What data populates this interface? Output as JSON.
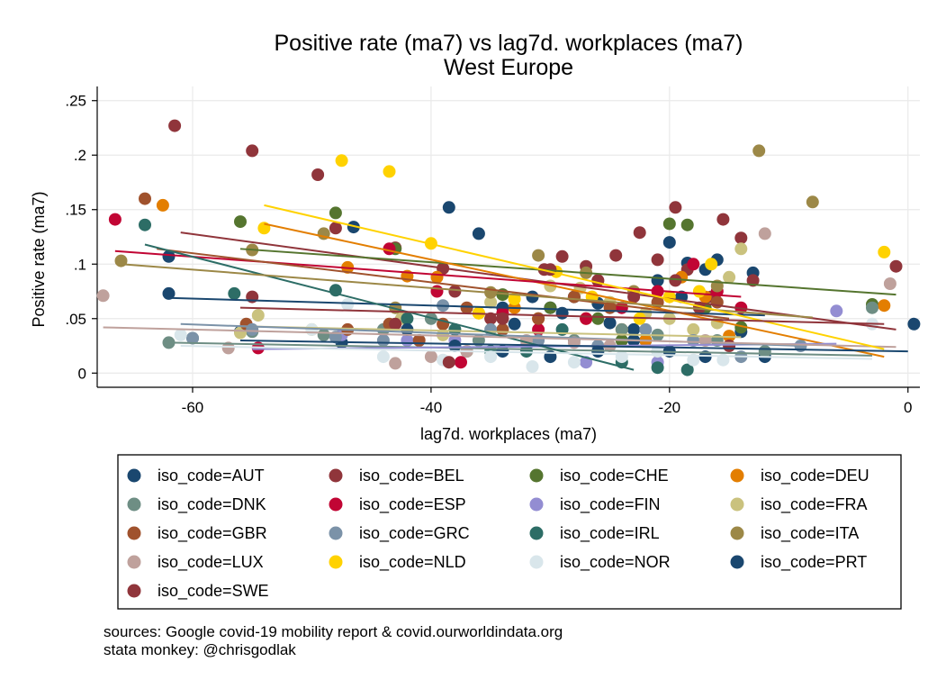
{
  "chart_data": {
    "type": "scatter",
    "title": "Positive rate (ma7) vs lag7d. workplaces (ma7)",
    "subtitle": "West Europe",
    "xlabel": "lag7d. workplaces (ma7)",
    "ylabel": "Positive rate (ma7)",
    "xlim": [
      -68,
      1
    ],
    "ylim": [
      -0.013,
      0.263
    ],
    "xticks": [
      -60,
      -40,
      -20,
      0
    ],
    "xtick_labels": [
      "-60",
      "-40",
      "-20",
      "0"
    ],
    "yticks": [
      0,
      0.05,
      0.1,
      0.15,
      0.2,
      0.25
    ],
    "ytick_labels": [
      "0",
      ".05",
      ".1",
      ".15",
      ".2",
      ".25"
    ],
    "grid": true,
    "legend_position": "bottom",
    "legend_prefix": "iso_code=",
    "series": [
      {
        "name": "AUT",
        "color": "#1a476f",
        "points": [
          [
            -62,
            0.107
          ],
          [
            -62,
            0.073
          ],
          [
            -56,
            0.038
          ],
          [
            -47.5,
            0.028
          ],
          [
            -38.5,
            0.152
          ],
          [
            -36,
            0.128
          ],
          [
            -34,
            0.06
          ],
          [
            -33,
            0.045
          ],
          [
            -31.5,
            0.07
          ],
          [
            -30,
            0.06
          ],
          [
            -29,
            0.055
          ],
          [
            -28,
            0.07
          ],
          [
            -26,
            0.064
          ],
          [
            -25,
            0.046
          ],
          [
            -23,
            0.04
          ],
          [
            -22,
            0.03
          ],
          [
            -21,
            0.085
          ],
          [
            -20,
            0.12
          ],
          [
            -19,
            0.07
          ],
          [
            -18.5,
            0.101
          ],
          [
            -17,
            0.095
          ],
          [
            -16,
            0.104
          ],
          [
            -14,
            0.038
          ],
          [
            -13,
            0.092
          ],
          [
            -12,
            0.015
          ]
        ],
        "fit": [
          [
            -62,
            0.069
          ],
          [
            -12,
            0.053
          ]
        ]
      },
      {
        "name": "BEL",
        "color": "#90353b",
        "points": [
          [
            -61.5,
            0.227
          ],
          [
            -55,
            0.204
          ],
          [
            -49.5,
            0.182
          ],
          [
            -48,
            0.133
          ],
          [
            -43,
            0.115
          ],
          [
            -39,
            0.096
          ],
          [
            -38,
            0.075
          ],
          [
            -35,
            0.05
          ],
          [
            -30.5,
            0.095
          ],
          [
            -29,
            0.107
          ],
          [
            -27,
            0.098
          ],
          [
            -26,
            0.085
          ],
          [
            -24.5,
            0.108
          ],
          [
            -22.5,
            0.129
          ],
          [
            -21,
            0.104
          ],
          [
            -19.5,
            0.152
          ],
          [
            -18.5,
            0.095
          ],
          [
            -16.5,
            0.07
          ],
          [
            -15.5,
            0.141
          ],
          [
            -14,
            0.124
          ],
          [
            -13,
            0.085
          ]
        ],
        "fit": [
          [
            -61,
            0.129
          ],
          [
            -1,
            0.04
          ]
        ]
      },
      {
        "name": "CHE",
        "color": "#55752f",
        "points": [
          [
            -56,
            0.139
          ],
          [
            -48,
            0.147
          ],
          [
            -43,
            0.114
          ],
          [
            -37,
            0.02
          ],
          [
            -34,
            0.072
          ],
          [
            -30,
            0.06
          ],
          [
            -26,
            0.05
          ],
          [
            -24,
            0.03
          ],
          [
            -20,
            0.137
          ],
          [
            -18.5,
            0.136
          ],
          [
            -17,
            0.06
          ],
          [
            -14,
            0.042
          ],
          [
            -3,
            0.063
          ]
        ],
        "fit": [
          [
            -56,
            0.114
          ],
          [
            -1,
            0.072
          ]
        ]
      },
      {
        "name": "DEU",
        "color": "#e37e00",
        "points": [
          [
            -62.5,
            0.154
          ],
          [
            -47,
            0.097
          ],
          [
            -42,
            0.089
          ],
          [
            -39.5,
            0.088
          ],
          [
            -36,
            0.055
          ],
          [
            -33,
            0.06
          ],
          [
            -31,
            0.05
          ],
          [
            -27,
            0.05
          ],
          [
            -24,
            0.04
          ],
          [
            -22,
            0.03
          ],
          [
            -19,
            0.088
          ],
          [
            -17,
            0.07
          ],
          [
            -15,
            0.034
          ],
          [
            -2,
            0.062
          ]
        ],
        "fit": [
          [
            -54,
            0.137
          ],
          [
            -2,
            0.015
          ]
        ]
      },
      {
        "name": "DNK",
        "color": "#6e8e84",
        "points": [
          [
            -62,
            0.028
          ],
          [
            -60,
            0.032
          ],
          [
            -55,
            0.038
          ],
          [
            -49,
            0.035
          ],
          [
            -44,
            0.04
          ],
          [
            -40,
            0.05
          ],
          [
            -36,
            0.03
          ],
          [
            -32,
            0.025
          ],
          [
            -28,
            0.03
          ],
          [
            -24,
            0.04
          ],
          [
            -21,
            0.035
          ],
          [
            -16,
            0.03
          ],
          [
            -12,
            0.02
          ],
          [
            -3,
            0.06
          ]
        ],
        "fit": [
          [
            -62,
            0.028
          ],
          [
            -3,
            0.016
          ]
        ]
      },
      {
        "name": "ESP",
        "color": "#c10534",
        "points": [
          [
            -66.5,
            0.141
          ],
          [
            -54.5,
            0.023
          ],
          [
            -43.5,
            0.114
          ],
          [
            -39.5,
            0.075
          ],
          [
            -37.5,
            0.01
          ],
          [
            -34,
            0.055
          ],
          [
            -31,
            0.04
          ],
          [
            -27,
            0.05
          ],
          [
            -24,
            0.06
          ],
          [
            -21,
            0.075
          ],
          [
            -18,
            0.1
          ],
          [
            -16,
            0.075
          ],
          [
            -14,
            0.06
          ]
        ],
        "fit": [
          [
            -66.5,
            0.112
          ],
          [
            -14,
            0.07
          ]
        ]
      },
      {
        "name": "FIN",
        "color": "#938dd2",
        "points": [
          [
            -47.5,
            0.035
          ],
          [
            -42,
            0.03
          ],
          [
            -38,
            0.03
          ],
          [
            -32,
            0.025
          ],
          [
            -27,
            0.01
          ],
          [
            -21,
            0.01
          ],
          [
            -6,
            0.057
          ]
        ],
        "fit": [
          [
            -55,
            0.022
          ],
          [
            -6,
            0.027
          ]
        ]
      },
      {
        "name": "FRA",
        "color": "#cac27e",
        "points": [
          [
            -56,
            0.037
          ],
          [
            -54.5,
            0.053
          ],
          [
            -50,
            0.04
          ],
          [
            -42.5,
            0.05
          ],
          [
            -39,
            0.035
          ],
          [
            -35,
            0.065
          ],
          [
            -30,
            0.08
          ],
          [
            -27.5,
            0.078
          ],
          [
            -25,
            0.065
          ],
          [
            -22,
            0.055
          ],
          [
            -20,
            0.05
          ],
          [
            -18,
            0.04
          ],
          [
            -16,
            0.046
          ],
          [
            -15,
            0.088
          ],
          [
            -14,
            0.114
          ]
        ],
        "fit": [
          [
            -56,
            0.043
          ],
          [
            -14,
            0.033
          ]
        ]
      },
      {
        "name": "GBR",
        "color": "#a0522d",
        "points": [
          [
            -64,
            0.16
          ],
          [
            -55.5,
            0.045
          ],
          [
            -47,
            0.04
          ],
          [
            -43.5,
            0.045
          ],
          [
            -41,
            0.03
          ],
          [
            -39,
            0.045
          ],
          [
            -37,
            0.06
          ],
          [
            -34,
            0.04
          ],
          [
            -31,
            0.05
          ],
          [
            -28,
            0.07
          ],
          [
            -25,
            0.06
          ],
          [
            -21,
            0.065
          ],
          [
            -16,
            0.065
          ]
        ],
        "fit": [
          [
            -63,
            0.114
          ],
          [
            -15,
            0.05
          ]
        ]
      },
      {
        "name": "GRC",
        "color": "#7b92a8",
        "points": [
          [
            -60,
            0.032
          ],
          [
            -55,
            0.04
          ],
          [
            -48,
            0.033
          ],
          [
            -44,
            0.03
          ],
          [
            -39,
            0.062
          ],
          [
            -35,
            0.04
          ],
          [
            -31,
            0.03
          ],
          [
            -26,
            0.025
          ],
          [
            -22,
            0.04
          ],
          [
            -18,
            0.03
          ],
          [
            -14,
            0.015
          ],
          [
            -9,
            0.025
          ]
        ],
        "fit": [
          [
            -61,
            0.045
          ],
          [
            -9,
            0.025
          ]
        ]
      },
      {
        "name": "IRL",
        "color": "#2d6d66",
        "points": [
          [
            -64,
            0.136
          ],
          [
            -56.5,
            0.073
          ],
          [
            -48,
            0.076
          ],
          [
            -42,
            0.05
          ],
          [
            -38,
            0.04
          ],
          [
            -35,
            0.02
          ],
          [
            -32,
            0.02
          ],
          [
            -29,
            0.04
          ],
          [
            -26,
            0.02
          ],
          [
            -24,
            0.01
          ],
          [
            -21,
            0.005
          ],
          [
            -18.5,
            0.003
          ]
        ],
        "fit": [
          [
            -64,
            0.118
          ],
          [
            -23,
            0.003
          ]
        ]
      },
      {
        "name": "ITA",
        "color": "#9c8847",
        "points": [
          [
            -66,
            0.103
          ],
          [
            -55,
            0.113
          ],
          [
            -49,
            0.128
          ],
          [
            -43,
            0.06
          ],
          [
            -35,
            0.074
          ],
          [
            -31,
            0.108
          ],
          [
            -27,
            0.092
          ],
          [
            -23,
            0.075
          ],
          [
            -16,
            0.08
          ],
          [
            -12.5,
            0.204
          ],
          [
            -8,
            0.157
          ]
        ],
        "fit": [
          [
            -66,
            0.1
          ],
          [
            -8,
            0.051
          ]
        ]
      },
      {
        "name": "LUX",
        "color": "#bfa19c",
        "points": [
          [
            -67.5,
            0.071
          ],
          [
            -57,
            0.023
          ],
          [
            -43,
            0.009
          ],
          [
            -40,
            0.015
          ],
          [
            -37,
            0.02
          ],
          [
            -32,
            0.03
          ],
          [
            -28,
            0.028
          ],
          [
            -25,
            0.025
          ],
          [
            -21,
            0.02
          ],
          [
            -17,
            0.03
          ],
          [
            -12,
            0.128
          ],
          [
            -1.5,
            0.082
          ]
        ],
        "fit": [
          [
            -67.5,
            0.042
          ],
          [
            -1,
            0.024
          ]
        ]
      },
      {
        "name": "NLD",
        "color": "#ffd200",
        "points": [
          [
            -54,
            0.133
          ],
          [
            -47.5,
            0.195
          ],
          [
            -43.5,
            0.185
          ],
          [
            -40,
            0.119
          ],
          [
            -36,
            0.055
          ],
          [
            -33,
            0.068
          ],
          [
            -29.5,
            0.093
          ],
          [
            -26.5,
            0.07
          ],
          [
            -22.5,
            0.05
          ],
          [
            -20,
            0.07
          ],
          [
            -17.5,
            0.075
          ],
          [
            -16.5,
            0.1
          ],
          [
            -2,
            0.111
          ]
        ],
        "fit": [
          [
            -54,
            0.154
          ],
          [
            -2,
            0.022
          ]
        ]
      },
      {
        "name": "NOR",
        "color": "#d9e6eb",
        "points": [
          [
            -61,
            0.035
          ],
          [
            -50,
            0.04
          ],
          [
            -47,
            0.063
          ],
          [
            -44,
            0.015
          ],
          [
            -39,
            0.012
          ],
          [
            -35,
            0.015
          ],
          [
            -31.5,
            0.006
          ],
          [
            -28,
            0.01
          ],
          [
            -24,
            0.015
          ],
          [
            -21,
            0.02
          ],
          [
            -18,
            0.012
          ],
          [
            -15.5,
            0.012
          ],
          [
            -3,
            0.045
          ]
        ],
        "fit": [
          [
            -61,
            0.025
          ],
          [
            -3,
            0.013
          ]
        ]
      },
      {
        "name": "PRT",
        "color": "#1a476f",
        "points": [
          [
            -46.5,
            0.134
          ],
          [
            -42,
            0.04
          ],
          [
            -38,
            0.025
          ],
          [
            -34,
            0.02
          ],
          [
            -30,
            0.015
          ],
          [
            -26,
            0.02
          ],
          [
            -23,
            0.03
          ],
          [
            -20,
            0.02
          ],
          [
            -17,
            0.015
          ],
          [
            0.5,
            0.045
          ]
        ],
        "fit": [
          [
            -56,
            0.03
          ],
          [
            0,
            0.02
          ]
        ]
      },
      {
        "name": "SWE",
        "color": "#90353b",
        "points": [
          [
            -55,
            0.07
          ],
          [
            -43,
            0.045
          ],
          [
            -38.5,
            0.01
          ],
          [
            -34,
            0.05
          ],
          [
            -30,
            0.095
          ],
          [
            -26,
            0.085
          ],
          [
            -23,
            0.07
          ],
          [
            -19.5,
            0.085
          ],
          [
            -17.5,
            0.06
          ],
          [
            -15,
            0.025
          ],
          [
            -1,
            0.098
          ]
        ],
        "fit": [
          [
            -56,
            0.06
          ],
          [
            -2,
            0.045
          ]
        ]
      }
    ]
  },
  "notes": {
    "line1": "sources: Google covid-19 mobility report & covid.ourworldindata.org",
    "line2": "stata monkey: @chrisgodlak"
  }
}
